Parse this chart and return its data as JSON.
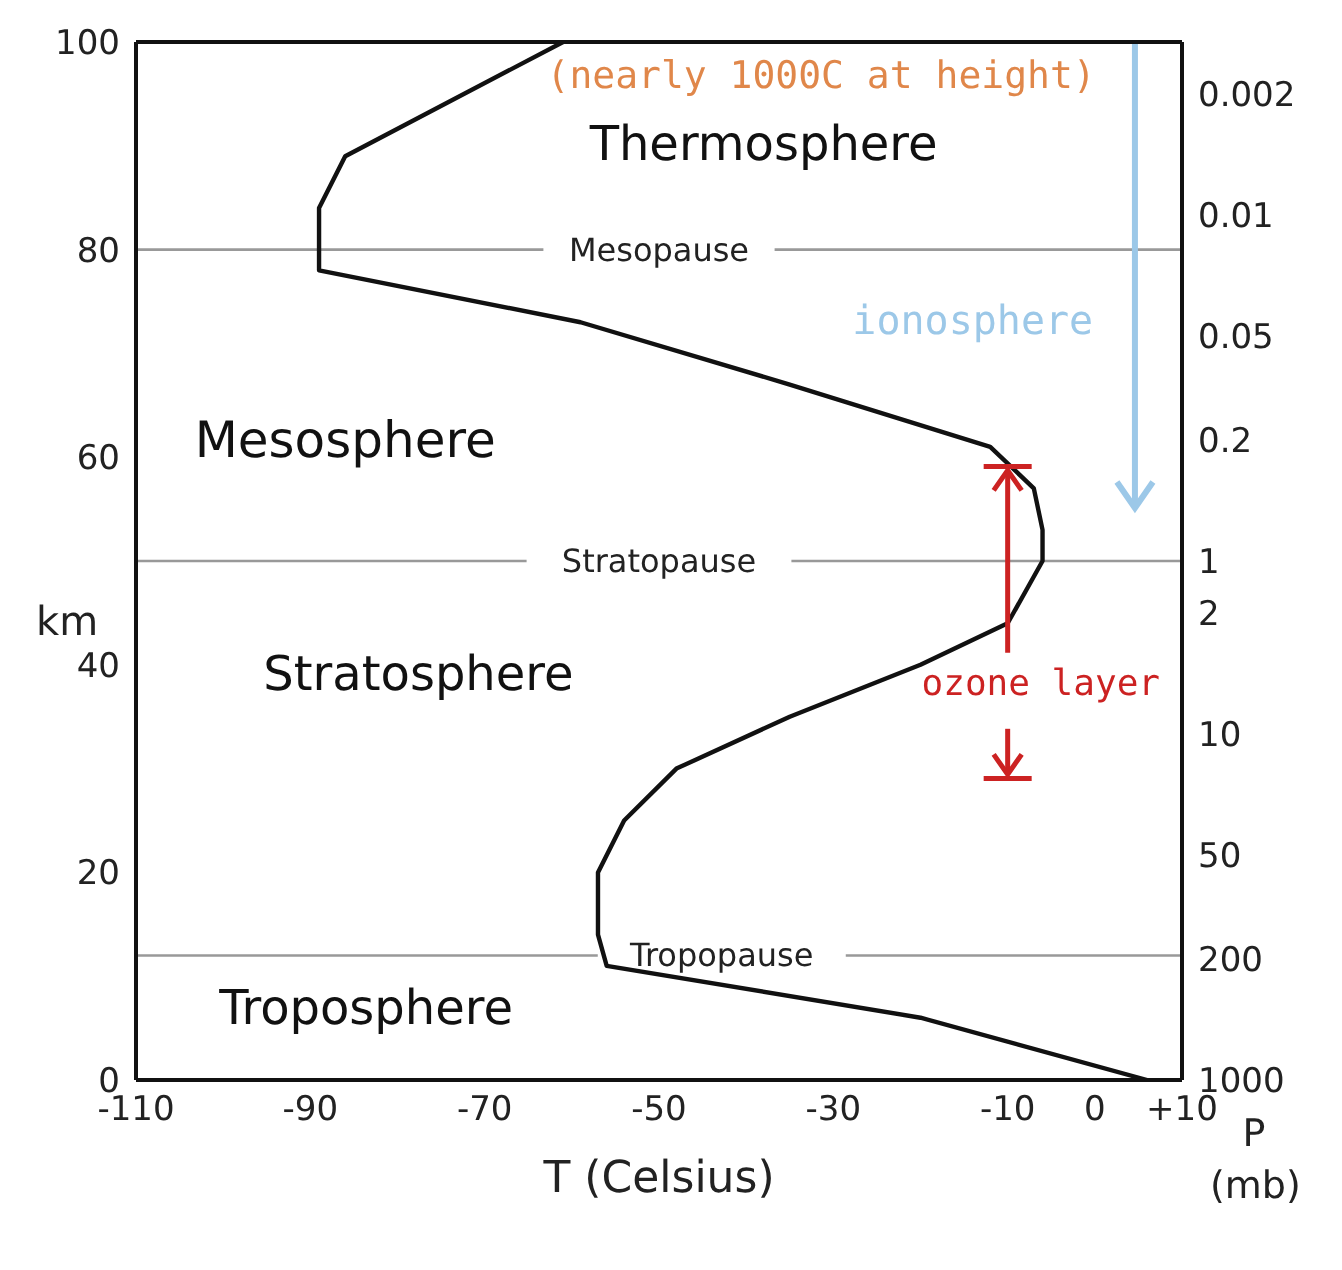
{
  "chart_data": {
    "type": "line",
    "xlabel": "T (Celsius)",
    "ylabel": "km",
    "y2label": "P (mb)",
    "x": [
      -61,
      -86,
      -89,
      -89,
      -59,
      -35,
      -12,
      -7,
      -6,
      -6,
      -10,
      -20,
      -35,
      -48,
      -54,
      -57,
      -57,
      -56,
      -20,
      6
    ],
    "series": [
      {
        "color": "#111111",
        "values": [
          100,
          89,
          84,
          78,
          73,
          67,
          61,
          57,
          53,
          50,
          44,
          40,
          35,
          30,
          25,
          20,
          14,
          11,
          6,
          0
        ]
      }
    ],
    "xlim": [
      -110,
      10
    ],
    "xticks": [
      -110,
      -90,
      -70,
      -50,
      -30,
      -10,
      0,
      {
        "value": 10,
        "label": "+10"
      }
    ],
    "ylim": [
      0,
      100
    ],
    "yticks": [
      0,
      20,
      40,
      60,
      80,
      100
    ],
    "y2lim": [
      1000,
      0.001
    ],
    "y2ticks": [
      1000,
      200,
      50,
      10,
      2,
      1,
      0.2,
      0.05,
      0.01,
      0.002
    ],
    "log": "y2",
    "ref_lines": [
      {
        "axis": "y",
        "value": 80,
        "label": "Mesopause",
        "color": "#999999"
      },
      {
        "axis": "y",
        "value": 50,
        "label": "Stratopause",
        "color": "#999999"
      },
      {
        "axis": "y",
        "value": 12,
        "label": "Tropopause",
        "color": "#999999"
      }
    ],
    "annotations": [
      "(nearly 1000C at height)",
      "Thermosphere",
      "ionosphere",
      "Mesosphere",
      "Stratosphere",
      {
        "text": "ozone layer",
        "x": -10,
        "y": 59
      },
      "Troposphere"
    ],
    "grid": false,
    "marker": "none",
    "line_style": "solid"
  }
}
